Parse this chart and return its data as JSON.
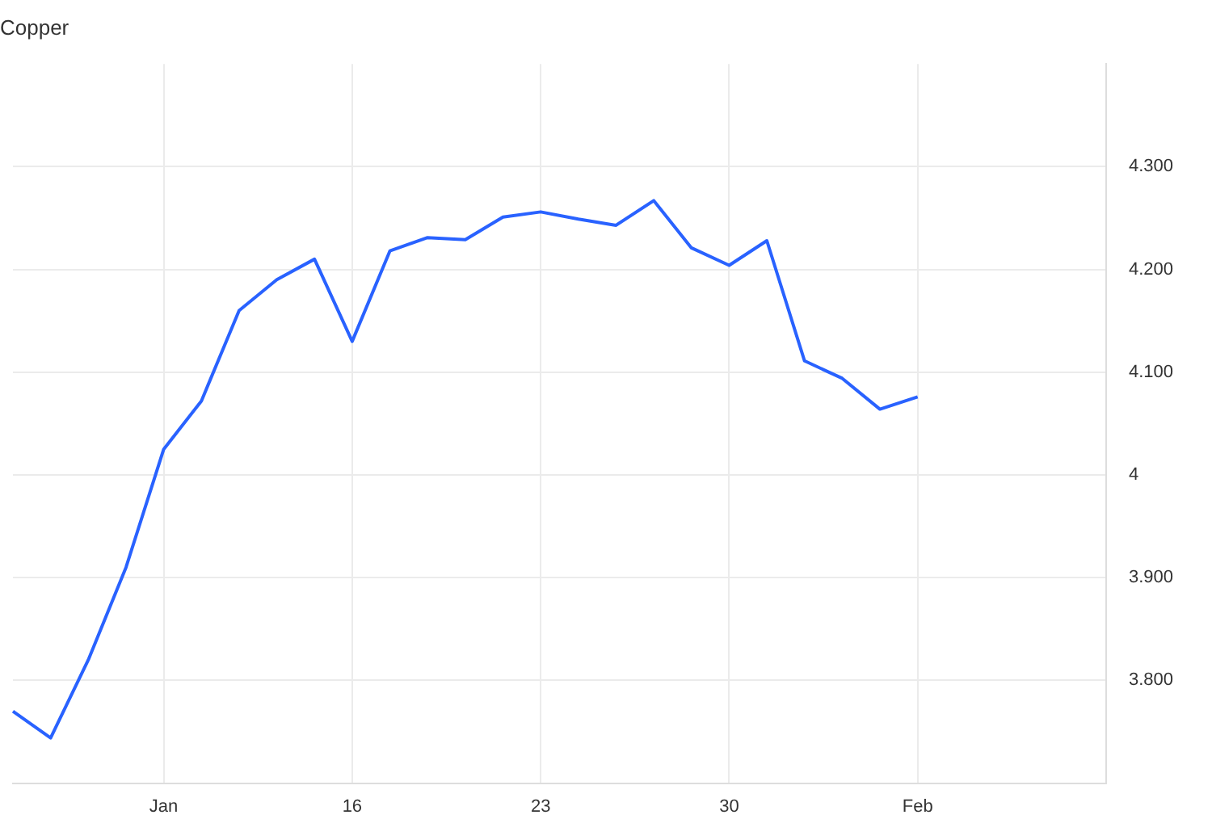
{
  "chart_data": {
    "type": "line",
    "title": "Copper",
    "categories": [
      null,
      null,
      null,
      null,
      "Jan",
      null,
      null,
      null,
      null,
      "16",
      null,
      null,
      null,
      null,
      "23",
      null,
      null,
      null,
      null,
      "30",
      null,
      null,
      null,
      null,
      "Feb",
      null,
      null,
      null,
      null,
      null
    ],
    "series": [
      {
        "color": "#2962ff",
        "values": [
          3.77,
          3.744,
          3.82,
          3.91,
          4.025,
          4.072,
          4.16,
          4.19,
          4.21,
          4.13,
          4.218,
          4.231,
          4.229,
          4.251,
          4.256,
          4.249,
          4.243,
          4.267,
          4.221,
          4.204,
          4.228,
          4.111,
          4.094,
          4.064,
          4.076,
          null,
          null,
          null,
          null,
          null
        ]
      }
    ],
    "ylim": [
      3.7,
      4.4
    ],
    "yticks": [
      {
        "value": 3.8,
        "label": "3.800"
      },
      {
        "value": 3.9,
        "label": "3.900"
      },
      {
        "value": 4,
        "label": "4"
      },
      {
        "value": 4.1,
        "label": "4.100"
      },
      {
        "value": 4.2,
        "label": "4.200"
      },
      {
        "value": 4.3,
        "label": "4.300"
      }
    ],
    "grid": true,
    "legend": false,
    "marker": "none",
    "line_style": "solid"
  }
}
